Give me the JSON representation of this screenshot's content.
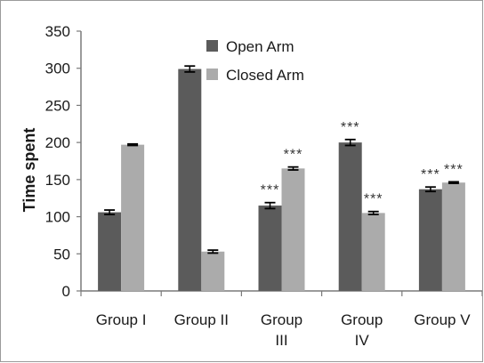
{
  "chart_data": {
    "type": "bar",
    "title": "",
    "xlabel": "",
    "ylabel": "Time spent",
    "ylim": [
      0,
      350
    ],
    "yticks": [
      0,
      50,
      100,
      150,
      200,
      250,
      300,
      350
    ],
    "categories": [
      [
        "Group I"
      ],
      [
        "Group II"
      ],
      [
        "Group",
        "III"
      ],
      [
        "Group",
        "IV"
      ],
      [
        "Group V"
      ]
    ],
    "series": [
      {
        "name": "Open Arm",
        "color": "#5b5b5b",
        "values": [
          106,
          299,
          115,
          200,
          137
        ],
        "errors": [
          3,
          4,
          4,
          4,
          3
        ],
        "annotations": [
          "",
          "",
          "***",
          "***",
          "***"
        ]
      },
      {
        "name": "Closed Arm",
        "color": "#ababab",
        "values": [
          197,
          53,
          165,
          105,
          146
        ],
        "errors": [
          1,
          2,
          2,
          2,
          1
        ],
        "annotations": [
          "",
          "",
          "***",
          "***",
          "***"
        ]
      }
    ],
    "grid": false,
    "legend_position": "top-center"
  }
}
